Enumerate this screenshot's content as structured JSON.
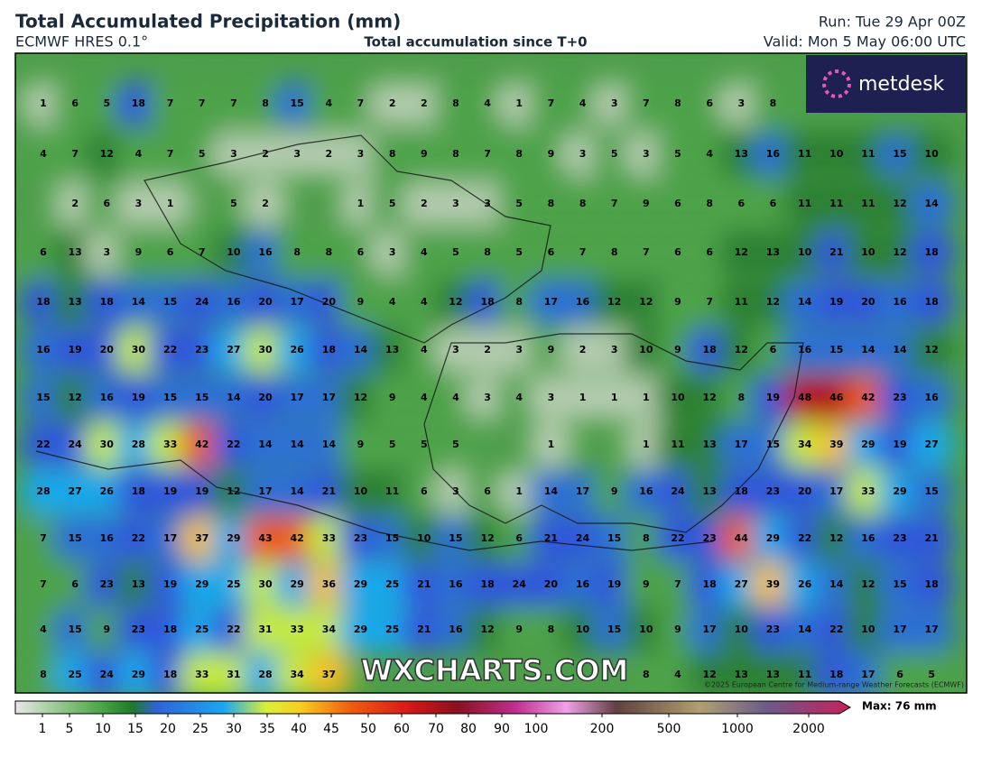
{
  "header": {
    "title": "Total Accumulated Precipitation (mm)",
    "model": "ECMWF HRES 0.1°",
    "subtitle": "Total accumulation since T+0",
    "run": "Run: Tue 29 Apr 00Z",
    "valid": "Valid: Mon 5 May 06:00 UTC"
  },
  "map": {
    "logo": "metdesk",
    "watermark": "WXCHARTS.COM",
    "copyright": "©2025 European Centre for Medium-range Weather Forecasts (ECMWF)",
    "grid": [
      [
        1,
        6,
        5,
        18,
        7,
        7,
        7,
        8,
        15,
        4,
        7,
        2,
        2,
        8,
        4,
        1,
        7,
        4,
        3,
        7,
        8,
        6,
        3,
        8,
        null,
        null,
        null,
        null,
        null
      ],
      [
        4,
        7,
        12,
        4,
        7,
        5,
        3,
        2,
        3,
        2,
        3,
        8,
        9,
        8,
        7,
        8,
        9,
        3,
        5,
        3,
        5,
        4,
        13,
        16,
        11,
        10,
        11,
        15,
        10
      ],
      [
        null,
        2,
        6,
        3,
        1,
        null,
        5,
        2,
        null,
        null,
        1,
        5,
        2,
        3,
        3,
        5,
        8,
        8,
        7,
        9,
        6,
        8,
        6,
        6,
        11,
        11,
        11,
        12,
        14
      ],
      [
        6,
        13,
        3,
        9,
        6,
        7,
        10,
        16,
        8,
        8,
        6,
        3,
        4,
        5,
        8,
        5,
        6,
        7,
        8,
        7,
        6,
        6,
        12,
        13,
        10,
        21,
        10,
        12,
        18
      ],
      [
        18,
        13,
        18,
        14,
        15,
        24,
        16,
        20,
        17,
        20,
        9,
        4,
        4,
        12,
        18,
        8,
        17,
        16,
        12,
        12,
        9,
        7,
        11,
        12,
        14,
        19,
        20,
        16,
        18
      ],
      [
        16,
        19,
        20,
        30,
        22,
        23,
        27,
        30,
        26,
        18,
        14,
        13,
        4,
        3,
        2,
        3,
        9,
        2,
        3,
        10,
        9,
        18,
        12,
        6,
        16,
        15,
        14,
        14,
        12
      ],
      [
        15,
        12,
        16,
        19,
        15,
        15,
        14,
        20,
        17,
        17,
        12,
        9,
        4,
        4,
        3,
        4,
        3,
        1,
        1,
        1,
        10,
        12,
        8,
        19,
        48,
        46,
        42,
        23,
        16
      ],
      [
        22,
        24,
        30,
        28,
        33,
        42,
        22,
        14,
        14,
        14,
        9,
        5,
        5,
        5,
        null,
        null,
        1,
        null,
        null,
        1,
        11,
        13,
        17,
        15,
        34,
        39,
        29,
        19,
        27
      ],
      [
        28,
        27,
        26,
        18,
        19,
        19,
        12,
        17,
        14,
        21,
        10,
        11,
        6,
        3,
        6,
        1,
        14,
        17,
        9,
        16,
        24,
        13,
        18,
        23,
        20,
        17,
        33,
        29,
        15
      ],
      [
        7,
        15,
        16,
        22,
        17,
        37,
        29,
        43,
        42,
        33,
        23,
        15,
        10,
        15,
        12,
        6,
        21,
        24,
        15,
        8,
        22,
        23,
        44,
        29,
        22,
        12,
        16,
        23,
        21
      ],
      [
        7,
        6,
        23,
        13,
        19,
        29,
        25,
        30,
        29,
        36,
        29,
        25,
        21,
        16,
        18,
        24,
        20,
        16,
        19,
        9,
        7,
        18,
        27,
        39,
        26,
        14,
        12,
        15,
        18
      ],
      [
        4,
        15,
        9,
        23,
        18,
        25,
        22,
        31,
        33,
        34,
        29,
        25,
        21,
        16,
        12,
        9,
        8,
        10,
        15,
        10,
        9,
        17,
        10,
        23,
        14,
        22,
        10,
        17,
        17
      ],
      [
        8,
        25,
        24,
        29,
        18,
        33,
        31,
        28,
        34,
        37,
        null,
        null,
        null,
        null,
        null,
        null,
        null,
        null,
        null,
        8,
        4,
        12,
        13,
        13,
        11,
        18,
        17,
        6,
        5
      ]
    ]
  },
  "colorbar": {
    "labels": [
      1,
      5,
      10,
      15,
      20,
      25,
      30,
      35,
      40,
      45,
      50,
      60,
      70,
      80,
      90,
      100,
      200,
      500,
      1000,
      2000
    ],
    "max": "Max: 76 mm"
  }
}
